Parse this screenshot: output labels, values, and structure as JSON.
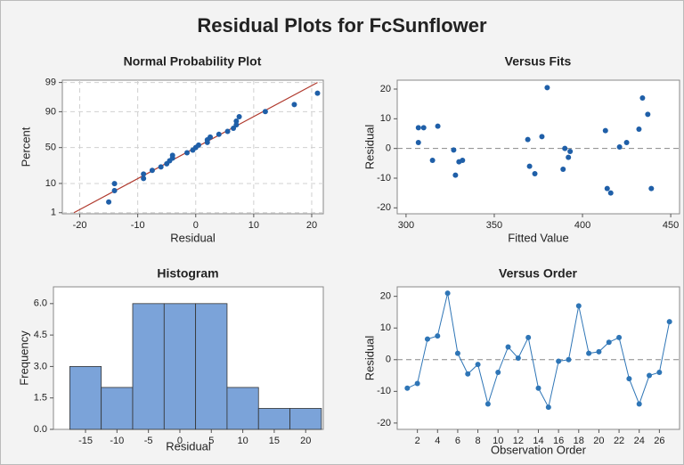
{
  "title": "Residual Plots for FcSunflower",
  "chart_data": [
    {
      "type": "probability",
      "title": "Normal Probability Plot",
      "x_label": "Residual",
      "y_label": "Percent",
      "x": [
        -15,
        -14,
        -14,
        -9,
        -9,
        -7.5,
        -6,
        -5,
        -4.5,
        -4,
        -4,
        -1.5,
        -0.5,
        0,
        0.5,
        2,
        2,
        2.5,
        4,
        5.5,
        6.5,
        7,
        7,
        7.5,
        12,
        17,
        21
      ],
      "values": [
        2.6,
        6.2,
        9.9,
        13.5,
        17.2,
        20.8,
        24.5,
        28.1,
        31.8,
        35.4,
        39.1,
        42.7,
        46.4,
        50.0,
        53.6,
        57.3,
        60.9,
        64.6,
        68.2,
        71.9,
        75.5,
        79.2,
        82.8,
        86.5,
        90.1,
        93.8,
        97.4
      ],
      "color": "#1f5fa8",
      "yscale": "probability",
      "fit_line": {
        "x": [
          -21,
          21
        ],
        "y": [
          1,
          99
        ],
        "color": "#b03a2e"
      },
      "xlim": [
        -23,
        22
      ],
      "xticks": [
        -20,
        -10,
        0,
        10,
        20
      ],
      "ylim": [
        0.9,
        99.2
      ],
      "yticks": [
        1,
        10,
        50,
        90,
        99
      ],
      "grid": true
    },
    {
      "type": "scatter",
      "title": "Versus Fits",
      "x_label": "Fitted Value",
      "y_label": "Residual",
      "x": [
        307,
        307,
        310,
        315,
        318,
        327,
        328,
        330,
        332,
        369,
        370,
        373,
        377,
        380,
        389,
        390,
        392,
        393,
        413,
        414,
        416,
        421,
        425,
        432,
        434,
        437,
        439
      ],
      "values": [
        2,
        7,
        7,
        -4,
        7.5,
        -0.5,
        -9,
        -4.5,
        -4,
        3,
        -6,
        -8.5,
        4,
        20.5,
        -7,
        0,
        -3,
        -1,
        6,
        -13.5,
        -15,
        0.5,
        2,
        6.5,
        17,
        11.5,
        -13.5
      ],
      "color": "#1f5fa8",
      "hline": 0,
      "xlim": [
        295,
        455
      ],
      "xticks": [
        300,
        350,
        400,
        450
      ],
      "ylim": [
        -22,
        23
      ],
      "yticks": [
        -20,
        -10,
        0,
        10,
        20
      ],
      "grid": false
    },
    {
      "type": "histogram",
      "title": "Histogram",
      "x_label": "Residual",
      "y_label": "Frequency",
      "bins": [
        -17.5,
        -12.5,
        -7.5,
        -2.5,
        2.5,
        7.5,
        12.5,
        17.5,
        22.5
      ],
      "values": [
        3,
        2,
        6,
        6,
        6,
        2,
        1,
        1
      ],
      "color": "#7ba3d9",
      "xlim": [
        -20.1,
        22.8
      ],
      "xticks": [
        -15,
        -10,
        -5,
        0,
        5,
        10,
        15,
        20
      ],
      "ylim": [
        0,
        6.8
      ],
      "yticks": [
        {
          "value": 0,
          "label": "0.0"
        },
        {
          "value": 1.5,
          "label": "1.5"
        },
        {
          "value": 3,
          "label": "3.0"
        },
        {
          "value": 4.5,
          "label": "4.5"
        },
        {
          "value": 6,
          "label": "6.0"
        }
      ],
      "grid": false
    },
    {
      "type": "line",
      "title": "Versus Order",
      "x_label": "Observation Order",
      "y_label": "Residual",
      "x": [
        1,
        2,
        3,
        4,
        5,
        6,
        7,
        8,
        9,
        10,
        11,
        12,
        13,
        14,
        15,
        16,
        17,
        18,
        19,
        20,
        21,
        22,
        23,
        24,
        25,
        26,
        27
      ],
      "values": [
        -9,
        -7.5,
        6.5,
        7.5,
        21,
        2,
        -4.5,
        -1.5,
        -14,
        -4,
        4,
        0.5,
        7,
        -9,
        -15,
        -0.5,
        0,
        17,
        2,
        2.5,
        5.5,
        7,
        -6,
        -14,
        -5,
        -4,
        12
      ],
      "color": "#2e75b6",
      "hline": 0,
      "xlim": [
        0,
        28
      ],
      "xticks": [
        2,
        4,
        6,
        8,
        10,
        12,
        14,
        16,
        18,
        20,
        22,
        24,
        26
      ],
      "ylim": [
        -22,
        23
      ],
      "yticks": [
        -20,
        -10,
        0,
        10,
        20
      ],
      "grid": false
    }
  ]
}
